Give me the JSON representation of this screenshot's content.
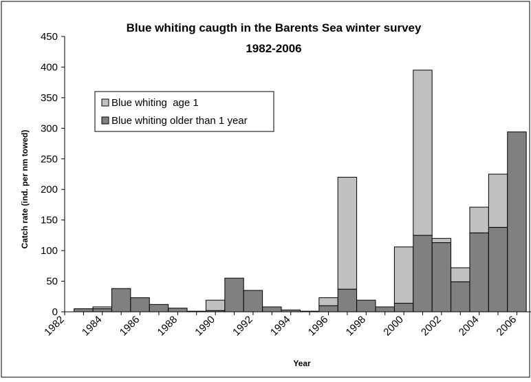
{
  "chart_data": {
    "type": "bar",
    "stacked": true,
    "title": "Blue whiting caugth in the Barents Sea winter survey",
    "subtitle": "1982-2006",
    "xlabel": "Year",
    "ylabel": "Catch rate (ind. per nm towed)",
    "ylim": [
      0,
      450
    ],
    "yticks": [
      0,
      50,
      100,
      150,
      200,
      250,
      300,
      350,
      400,
      450
    ],
    "xtick_labels": [
      "1982",
      "1984",
      "1986",
      "1988",
      "1990",
      "1992",
      "1994",
      "1996",
      "1998",
      "2000",
      "2002",
      "2004",
      "2006"
    ],
    "legend_position": "upper-left",
    "grid": false,
    "categories": [
      "1983",
      "1984",
      "1985",
      "1986",
      "1987",
      "1988",
      "1989",
      "1990",
      "1991",
      "1992",
      "1993",
      "1994",
      "1995",
      "1996",
      "1997",
      "1998",
      "1999",
      "2000",
      "2001",
      "2002",
      "2003",
      "2004",
      "2005",
      "2006"
    ],
    "series": [
      {
        "name": "Blue whiting older than 1 year",
        "color": "#808080",
        "values": [
          5,
          5,
          38,
          23,
          12,
          6,
          1,
          2,
          55,
          35,
          8,
          3,
          1,
          10,
          37,
          19,
          8,
          14,
          125,
          113,
          49,
          129,
          138,
          294
        ]
      },
      {
        "name": "Blue whiting  age 1",
        "color": "#c0c0c0",
        "values": [
          0,
          3,
          0,
          0,
          0,
          0,
          0,
          17,
          0,
          0,
          0,
          0,
          0,
          13,
          183,
          0,
          0,
          92,
          270,
          7,
          23,
          42,
          87,
          0
        ]
      }
    ]
  }
}
